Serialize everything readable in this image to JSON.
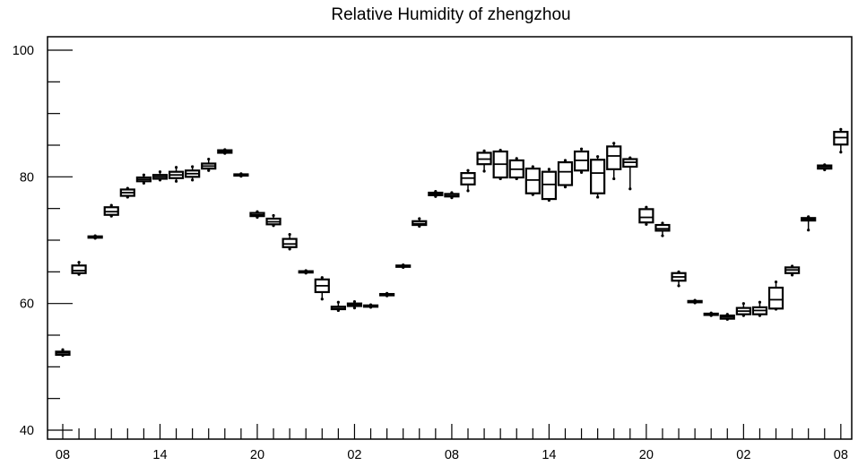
{
  "chart_data": {
    "type": "boxplot",
    "title": "Relative Humidity of zhengzhou",
    "xlabel": "",
    "ylabel": "",
    "ylim": [
      40,
      100
    ],
    "y_ticks": [
      "40",
      "60",
      "80",
      "100"
    ],
    "x_tick_labels": [
      "08",
      "14",
      "20",
      "02",
      "08",
      "14",
      "20",
      "02",
      "08"
    ],
    "grid": false,
    "legend": "none",
    "colors": {
      "box": "#000000",
      "background": "#ffffff"
    },
    "boxes": [
      {
        "x": 0,
        "min": 51.8,
        "q1": 51.9,
        "median": 52.2,
        "q3": 52.4,
        "max": 52.7
      },
      {
        "x": 1,
        "min": 64.6,
        "q1": 64.8,
        "median": 65.2,
        "q3": 66.0,
        "max": 66.5
      },
      {
        "x": 2,
        "min": 70.3,
        "q1": 70.4,
        "median": 70.5,
        "q3": 70.6,
        "max": 70.7
      },
      {
        "x": 3,
        "min": 73.8,
        "q1": 74.0,
        "median": 74.5,
        "q3": 75.2,
        "max": 75.5
      },
      {
        "x": 4,
        "min": 76.8,
        "q1": 77.0,
        "median": 77.5,
        "q3": 78.0,
        "max": 78.2
      },
      {
        "x": 5,
        "min": 79.0,
        "q1": 79.3,
        "median": 79.6,
        "q3": 79.9,
        "max": 80.3
      },
      {
        "x": 6,
        "min": 79.5,
        "q1": 79.7,
        "median": 80.0,
        "q3": 80.3,
        "max": 80.8
      },
      {
        "x": 7,
        "min": 79.3,
        "q1": 79.8,
        "median": 80.3,
        "q3": 80.8,
        "max": 81.5
      },
      {
        "x": 8,
        "min": 79.5,
        "q1": 80.0,
        "median": 80.5,
        "q3": 81.0,
        "max": 81.6
      },
      {
        "x": 9,
        "min": 81.0,
        "q1": 81.3,
        "median": 81.7,
        "q3": 82.1,
        "max": 82.8
      },
      {
        "x": 10,
        "min": 83.7,
        "q1": 83.8,
        "median": 84.0,
        "q3": 84.2,
        "max": 84.3
      },
      {
        "x": 11,
        "min": 80.1,
        "q1": 80.2,
        "median": 80.3,
        "q3": 80.4,
        "max": 80.5
      },
      {
        "x": 12,
        "min": 73.6,
        "q1": 73.8,
        "median": 74.0,
        "q3": 74.3,
        "max": 74.5
      },
      {
        "x": 13,
        "min": 72.3,
        "q1": 72.5,
        "median": 72.9,
        "q3": 73.4,
        "max": 73.9
      },
      {
        "x": 14,
        "min": 68.6,
        "q1": 68.9,
        "median": 69.4,
        "q3": 70.2,
        "max": 70.9
      },
      {
        "x": 15,
        "min": 64.8,
        "q1": 64.9,
        "median": 65.0,
        "q3": 65.1,
        "max": 65.2
      },
      {
        "x": 16,
        "min": 60.7,
        "q1": 61.8,
        "median": 62.8,
        "q3": 63.8,
        "max": 64.1
      },
      {
        "x": 17,
        "min": 58.9,
        "q1": 59.1,
        "median": 59.4,
        "q3": 59.5,
        "max": 60.2
      },
      {
        "x": 18,
        "min": 59.3,
        "q1": 59.6,
        "median": 59.8,
        "q3": 60.0,
        "max": 60.3
      },
      {
        "x": 19,
        "min": 59.4,
        "q1": 59.5,
        "median": 59.6,
        "q3": 59.7,
        "max": 59.8
      },
      {
        "x": 20,
        "min": 61.2,
        "q1": 61.3,
        "median": 61.4,
        "q3": 61.5,
        "max": 61.6
      },
      {
        "x": 21,
        "min": 65.7,
        "q1": 65.8,
        "median": 65.9,
        "q3": 66.0,
        "max": 66.1
      },
      {
        "x": 22,
        "min": 72.2,
        "q1": 72.4,
        "median": 72.6,
        "q3": 73.0,
        "max": 73.4
      },
      {
        "x": 23,
        "min": 76.9,
        "q1": 77.1,
        "median": 77.3,
        "q3": 77.5,
        "max": 77.7
      },
      {
        "x": 24,
        "min": 76.7,
        "q1": 76.9,
        "median": 77.0,
        "q3": 77.3,
        "max": 77.5
      },
      {
        "x": 25,
        "min": 77.8,
        "q1": 78.8,
        "median": 79.8,
        "q3": 80.6,
        "max": 81.0
      },
      {
        "x": 26,
        "min": 80.9,
        "q1": 82.0,
        "median": 82.8,
        "q3": 83.8,
        "max": 84.1
      },
      {
        "x": 27,
        "min": 79.7,
        "q1": 79.9,
        "median": 82.0,
        "q3": 84.0,
        "max": 84.2
      },
      {
        "x": 28,
        "min": 79.7,
        "q1": 79.9,
        "median": 81.2,
        "q3": 82.6,
        "max": 82.9
      },
      {
        "x": 29,
        "min": 77.2,
        "q1": 77.4,
        "median": 79.5,
        "q3": 81.3,
        "max": 81.6
      },
      {
        "x": 30,
        "min": 76.3,
        "q1": 76.5,
        "median": 78.8,
        "q3": 80.8,
        "max": 81.2
      },
      {
        "x": 31,
        "min": 78.4,
        "q1": 78.7,
        "median": 80.8,
        "q3": 82.3,
        "max": 82.6
      },
      {
        "x": 32,
        "min": 80.7,
        "q1": 81.0,
        "median": 82.6,
        "q3": 84.0,
        "max": 84.4
      },
      {
        "x": 33,
        "min": 76.8,
        "q1": 77.4,
        "median": 80.6,
        "q3": 82.7,
        "max": 83.2
      },
      {
        "x": 34,
        "min": 79.7,
        "q1": 81.2,
        "median": 83.3,
        "q3": 84.8,
        "max": 85.3
      },
      {
        "x": 35,
        "min": 78.1,
        "q1": 81.6,
        "median": 82.3,
        "q3": 82.8,
        "max": 83.0
      },
      {
        "x": 36,
        "min": 72.5,
        "q1": 72.8,
        "median": 73.6,
        "q3": 74.9,
        "max": 75.2
      },
      {
        "x": 37,
        "min": 70.7,
        "q1": 71.5,
        "median": 71.8,
        "q3": 72.4,
        "max": 72.7
      },
      {
        "x": 38,
        "min": 62.8,
        "q1": 63.6,
        "median": 64.2,
        "q3": 64.8,
        "max": 65.0
      },
      {
        "x": 39,
        "min": 60.1,
        "q1": 60.2,
        "median": 60.3,
        "q3": 60.4,
        "max": 60.5
      },
      {
        "x": 40,
        "min": 58.1,
        "q1": 58.2,
        "median": 58.3,
        "q3": 58.4,
        "max": 58.5
      },
      {
        "x": 41,
        "min": 57.5,
        "q1": 57.6,
        "median": 57.9,
        "q3": 58.1,
        "max": 58.3
      },
      {
        "x": 42,
        "min": 58.1,
        "q1": 58.3,
        "median": 58.8,
        "q3": 59.3,
        "max": 60.0
      },
      {
        "x": 43,
        "min": 58.1,
        "q1": 58.3,
        "median": 58.9,
        "q3": 59.4,
        "max": 60.2
      },
      {
        "x": 44,
        "min": 59.1,
        "q1": 59.2,
        "median": 60.6,
        "q3": 62.5,
        "max": 63.4
      },
      {
        "x": 45,
        "min": 64.5,
        "q1": 64.8,
        "median": 65.3,
        "q3": 65.7,
        "max": 65.9
      },
      {
        "x": 46,
        "min": 71.6,
        "q1": 73.1,
        "median": 73.3,
        "q3": 73.5,
        "max": 73.7
      },
      {
        "x": 47,
        "min": 81.1,
        "q1": 81.3,
        "median": 81.6,
        "q3": 81.8,
        "max": 81.9
      },
      {
        "x": 48,
        "min": 83.9,
        "q1": 85.1,
        "median": 86.2,
        "q3": 87.1,
        "max": 87.5
      }
    ]
  }
}
